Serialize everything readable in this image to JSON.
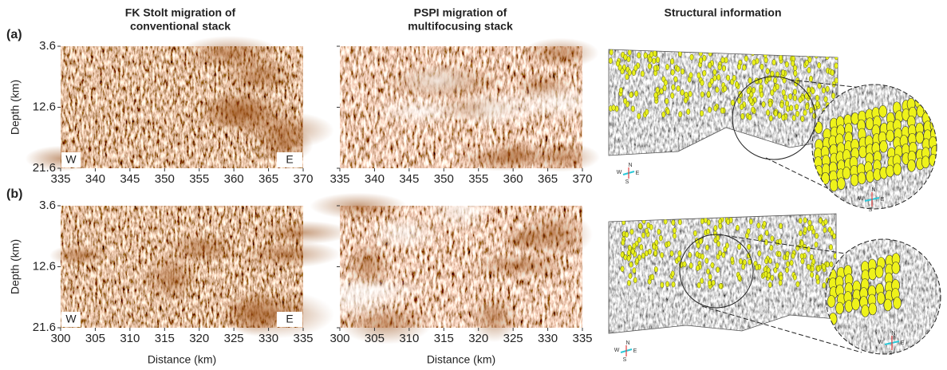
{
  "column_titles": [
    [
      "FK Stolt migration of",
      "conventional stack"
    ],
    [
      "PSPI migration of",
      "multifocusing stack"
    ],
    [
      "Structural information"
    ]
  ],
  "x_axis_label": "Distance (km)",
  "y_axis_label": "Depth (km)",
  "compass": [
    "N",
    "E",
    "S",
    "W"
  ],
  "rows": [
    {
      "label": "(a)",
      "yticks": [
        3.6,
        12.6,
        21.6
      ],
      "xticks": [
        335,
        340,
        345,
        350,
        355,
        360,
        365,
        370
      ],
      "west": "W",
      "east": "E"
    },
    {
      "label": "(b)",
      "yticks": [
        3.6,
        12.6,
        21.6
      ],
      "xticks": [
        300,
        305,
        310,
        315,
        320,
        325,
        330,
        335
      ],
      "west": "W",
      "east": "E"
    }
  ]
}
